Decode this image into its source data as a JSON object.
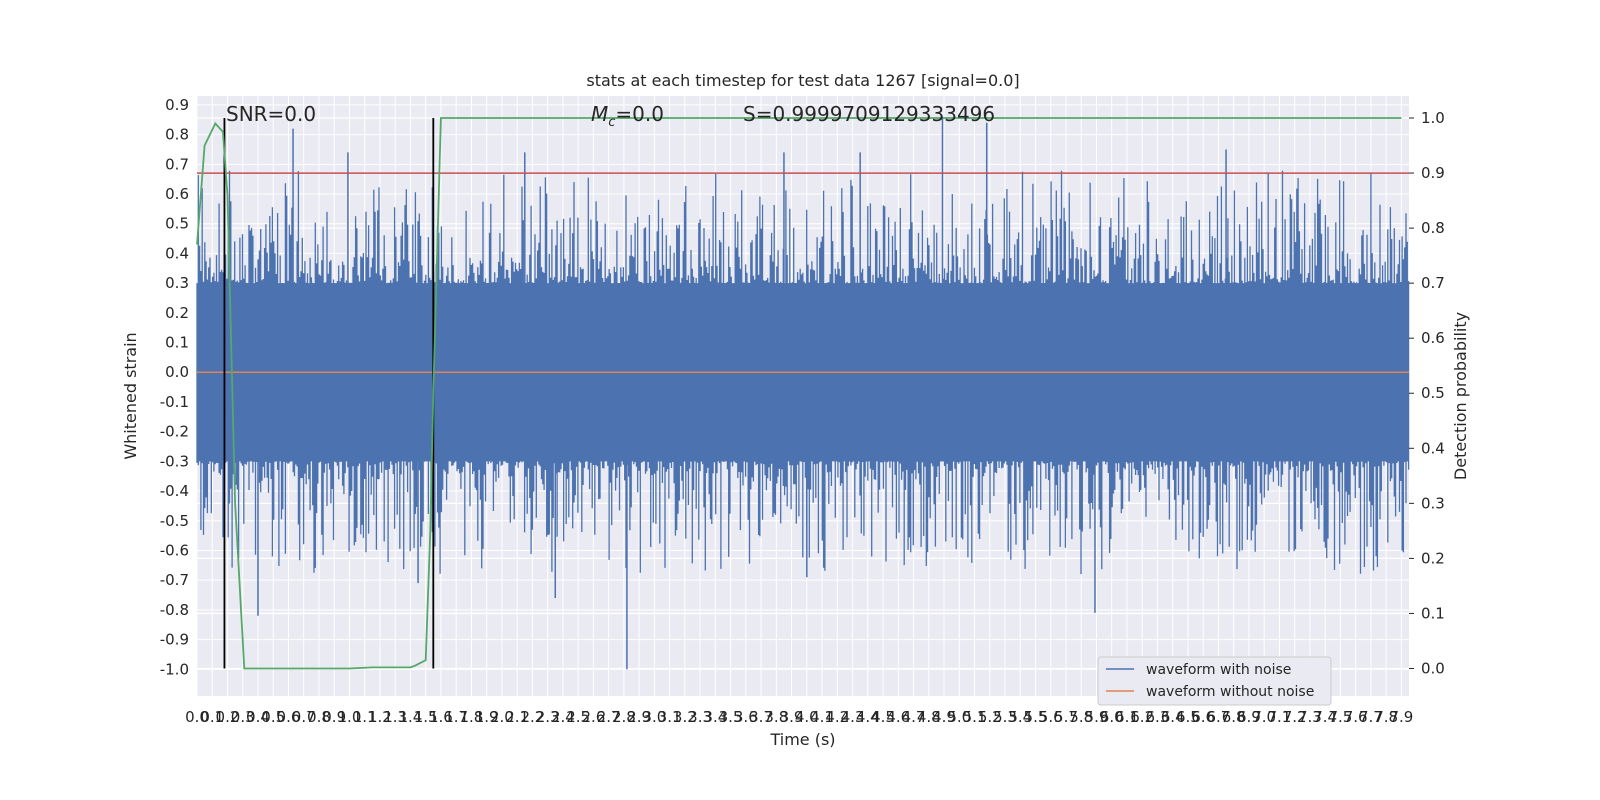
{
  "chart_data": {
    "type": "line",
    "title": "stats at each timestep for test data 1267 [signal=0.0]",
    "xlabel": "Time (s)",
    "ylabel": "Whitened strain",
    "ylabel_right": "Detection probability",
    "xlim": [
      0.0,
      7.95
    ],
    "ylim": [
      -1.09,
      0.93
    ],
    "ylim_right": [
      -0.05,
      1.04
    ],
    "x_ticks": [
      0.0,
      0.1,
      0.2,
      0.3,
      0.4,
      0.5,
      0.6,
      0.7,
      0.8,
      0.9,
      1.0,
      1.1,
      1.2,
      1.3,
      1.4,
      1.5,
      1.6,
      1.7,
      1.8,
      1.9,
      2.0,
      2.1,
      2.2,
      2.3,
      2.4,
      2.5,
      2.6,
      2.7,
      2.8,
      2.9,
      3.0,
      3.1,
      3.2,
      3.3,
      3.4,
      3.5,
      3.6,
      3.7,
      3.8,
      3.9,
      4.0,
      4.1,
      4.2,
      4.3,
      4.4,
      4.5,
      4.6,
      4.7,
      4.8,
      4.9,
      5.0,
      5.1,
      5.2,
      5.3,
      5.4,
      5.5,
      5.6,
      5.7,
      5.8,
      5.9,
      6.0,
      6.1,
      6.2,
      6.3,
      6.4,
      6.5,
      6.6,
      6.7,
      6.8,
      6.9,
      7.0,
      7.1,
      7.2,
      7.3,
      7.4,
      7.5,
      7.6,
      7.7,
      7.8,
      7.9
    ],
    "y_ticks": [
      0.9,
      0.8,
      0.7,
      0.6,
      0.5,
      0.4,
      0.3,
      0.2,
      0.1,
      0.0,
      -0.1,
      -0.2,
      -0.3,
      -0.4,
      -0.5,
      -0.6,
      -0.7,
      -0.8,
      -0.9,
      -1.0
    ],
    "y_ticks_right": [
      1.0,
      0.9,
      0.8,
      0.7,
      0.6,
      0.5,
      0.4,
      0.3,
      0.2,
      0.1,
      0.0
    ],
    "annotations": {
      "snr": "SNR=0.0",
      "mc_symbol": "M",
      "mc_subscript": "c",
      "mc_value": "=0.0",
      "s": "S=0.9999709129333496"
    },
    "vlines": [
      0.18,
      1.55
    ],
    "threshold": 0.9,
    "series": [
      {
        "name": "waveform with noise",
        "color": "#4c72b0",
        "baseline_top": 0.28,
        "baseline_bottom": -0.3,
        "noise_seed": 1267,
        "peaks": [
          {
            "x": 0.63,
            "y": 0.82
          },
          {
            "x": 0.99,
            "y": 0.74
          },
          {
            "x": 2.15,
            "y": 0.74
          },
          {
            "x": 3.85,
            "y": 0.74
          },
          {
            "x": 4.35,
            "y": 0.74
          },
          {
            "x": 4.89,
            "y": 0.86
          },
          {
            "x": 5.18,
            "y": 0.84
          },
          {
            "x": 6.75,
            "y": 0.75
          },
          {
            "x": 0.4,
            "y": -0.82
          },
          {
            "x": 2.82,
            "y": -1.0
          },
          {
            "x": 5.89,
            "y": -0.81
          },
          {
            "x": 2.35,
            "y": -0.76
          },
          {
            "x": 1.45,
            "y": -0.71
          },
          {
            "x": 4.0,
            "y": -0.69
          }
        ]
      },
      {
        "name": "waveform without noise",
        "color": "#dd8452",
        "constant": 0.0
      },
      {
        "name": "detection probability",
        "color": "#55a868",
        "axis": "right",
        "x": [
          0.0,
          0.05,
          0.12,
          0.17,
          0.2,
          0.25,
          0.31,
          1.0,
          1.15,
          1.4,
          1.43,
          1.5,
          1.53,
          1.55,
          1.6,
          7.9
        ],
        "values": [
          0.77,
          0.95,
          0.99,
          0.975,
          0.86,
          0.3,
          0.0,
          0.0,
          0.002,
          0.002,
          0.005,
          0.015,
          0.25,
          0.5,
          1.0,
          1.0
        ]
      },
      {
        "name": "threshold",
        "color": "#c44e52",
        "axis": "right",
        "constant": 0.9
      }
    ],
    "legend": {
      "position": "lower-right",
      "entries": [
        "waveform with noise",
        "waveform without noise"
      ]
    },
    "grid": true
  }
}
